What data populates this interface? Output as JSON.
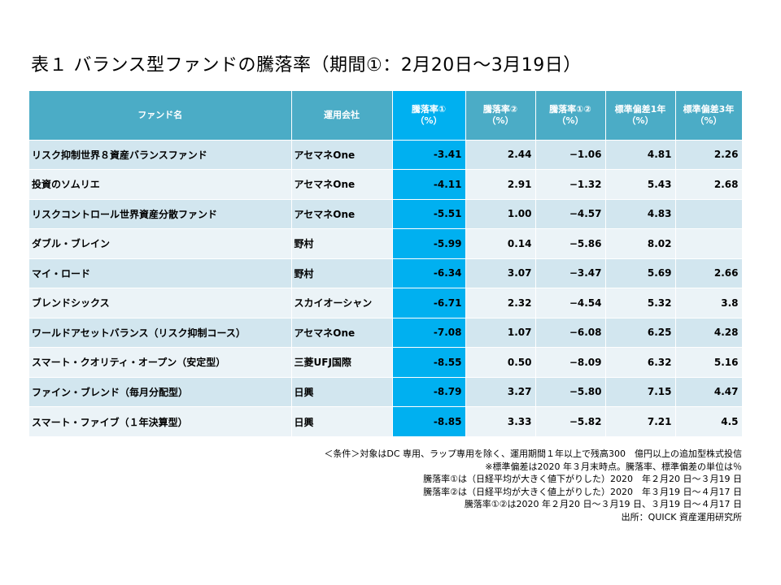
{
  "title": "表１ バランス型ファンドの騰落率（期間①：2月20日～3月19日）",
  "table": {
    "headers": [
      {
        "line1": "ファンド名",
        "line2": ""
      },
      {
        "line1": "運用会社",
        "line2": ""
      },
      {
        "line1": "騰落率①",
        "line2": "（%）"
      },
      {
        "line1": "騰落率②",
        "line2": "（%）"
      },
      {
        "line1": "騰落率①②",
        "line2": "（%）"
      },
      {
        "line1": "標準偏差1年",
        "line2": "（%）"
      },
      {
        "line1": "標準偏差3年",
        "line2": "（%）"
      }
    ],
    "rows": [
      {
        "name": "リスク抑制世界８資産バランスファンド",
        "company": "アセマネOne",
        "r1": "-3.41",
        "r2": "2.44",
        "r12": "−1.06",
        "sd1": "4.81",
        "sd3": "2.26"
      },
      {
        "name": "投資のソムリエ",
        "company": "アセマネOne",
        "r1": "-4.11",
        "r2": "2.91",
        "r12": "−1.32",
        "sd1": "5.43",
        "sd3": "2.68"
      },
      {
        "name": "リスクコントロール世界資産分散ファンド",
        "company": "アセマネOne",
        "r1": "-5.51",
        "r2": "1.00",
        "r12": "−4.57",
        "sd1": "4.83",
        "sd3": ""
      },
      {
        "name": "ダブル・ブレイン",
        "company": "野村",
        "r1": "-5.99",
        "r2": "0.14",
        "r12": "−5.86",
        "sd1": "8.02",
        "sd3": ""
      },
      {
        "name": "マイ・ロード",
        "company": "野村",
        "r1": "-6.34",
        "r2": "3.07",
        "r12": "−3.47",
        "sd1": "5.69",
        "sd3": "2.66"
      },
      {
        "name": "ブレンドシックス",
        "company": "スカイオーシャン",
        "r1": "-6.71",
        "r2": "2.32",
        "r12": "−4.54",
        "sd1": "5.32",
        "sd3": "3.8"
      },
      {
        "name": "ワールドアセットバランス（リスク抑制コース）",
        "company": "アセマネOne",
        "r1": "-7.08",
        "r2": "1.07",
        "r12": "−6.08",
        "sd1": "6.25",
        "sd3": "4.28"
      },
      {
        "name": "スマート・クオリティ・オープン（安定型）",
        "company": "三菱UFJ国際",
        "r1": "-8.55",
        "r2": "0.50",
        "r12": "−8.09",
        "sd1": "6.32",
        "sd3": "5.16"
      },
      {
        "name": "ファイン・ブレンド（毎月分配型）",
        "company": "日興",
        "r1": "-8.79",
        "r2": "3.27",
        "r12": "−5.80",
        "sd1": "7.15",
        "sd3": "4.47"
      },
      {
        "name": "スマート・ファイブ（１年決算型）",
        "company": "日興",
        "r1": "-8.85",
        "r2": "3.33",
        "r12": "−5.82",
        "sd1": "7.21",
        "sd3": "4.5"
      }
    ]
  },
  "notes": [
    "＜条件＞対象はDC 専用、ラップ専用を除く、運用期間１年以上で残高300　億円以上の追加型株式投信",
    "※標準偏差は2020 年３月末時点。騰落率、標準偏差の単位は％",
    "騰落率①は（日経平均が大きく値下がりした）2020　年２月20 日～３月19 日",
    "騰落率②は（日経平均が大きく値上がりした）2020　年３月19 日～４月17 日",
    "騰落率①②は2020 年２月20 日～３月19 日、３月19 日～４月17 日",
    "出所：QUICK 資産運用研究所"
  ]
}
